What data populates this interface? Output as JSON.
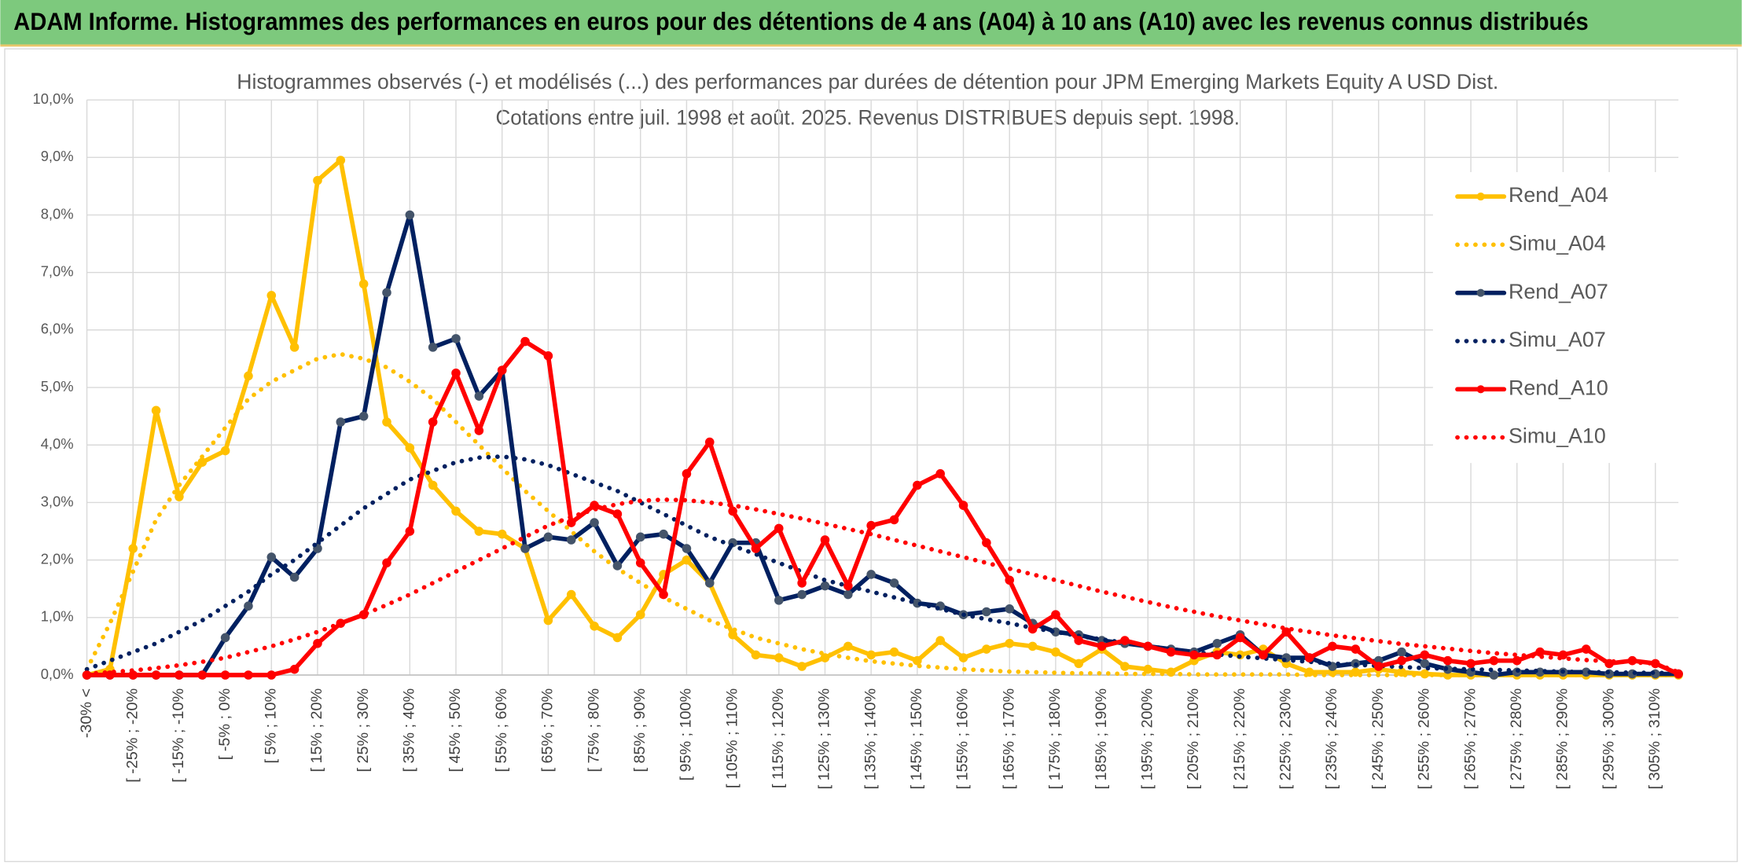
{
  "header": {
    "title": "ADAM Informe. Histogrammes des performances en euros pour des détentions de 4 ans (A04) à 10 ans (A10) avec les revenus connus distribués"
  },
  "chart_data": {
    "type": "line",
    "title": "Histogrammes observés (-) et modélisés (...) des performances par durées de détention pour JPM Emerging Markets Equity A USD Dist.",
    "subtitle": "Cotations entre juil. 1998 et août. 2025. Revenus DISTRIBUES depuis sept. 1998.",
    "categories": [
      "-30% <",
      null,
      "[ -25% ; -20%",
      null,
      "[ -15% ; -10%",
      null,
      "[ -5% ; 0%",
      null,
      "[ 5% ; 10%",
      null,
      "[ 15% ; 20%",
      null,
      "[ 25% ; 30%",
      null,
      "[ 35% ; 40%",
      null,
      "[ 45% ; 50%",
      null,
      "[ 55% ; 60%",
      null,
      "[ 65% ; 70%",
      null,
      "[ 75% ; 80%",
      null,
      "[ 85% ; 90%",
      null,
      "[ 95% ; 100%",
      null,
      "[ 105% ; 110%",
      null,
      "[ 115% ; 120%",
      null,
      "[ 125% ; 130%",
      null,
      "[ 135% ; 140%",
      null,
      "[ 145% ; 150%",
      null,
      "[ 155% ; 160%",
      null,
      "[ 165% ; 170%",
      null,
      "[ 175% ; 180%",
      null,
      "[ 185% ; 190%",
      null,
      "[ 195% ; 200%",
      null,
      "[ 205% ; 210%",
      null,
      "[ 215% ; 220%",
      null,
      "[ 225% ; 230%",
      null,
      "[ 235% ; 240%",
      null,
      "[ 245% ; 250%",
      null,
      "[ 255% ; 260%",
      null,
      "[ 265% ; 270%",
      null,
      "[ 275% ; 280%",
      null,
      "[ 285% ; 290%",
      null,
      "[ 295% ; 300%",
      null,
      "[ 305% ; 310%",
      null
    ],
    "series": [
      {
        "name": "Rend_A04",
        "color": "#FFC000",
        "style": "solid",
        "markers": true,
        "values": [
          0,
          0.1,
          2.2,
          4.6,
          3.1,
          3.7,
          3.9,
          5.2,
          6.6,
          5.7,
          8.6,
          8.95,
          6.8,
          4.4,
          3.95,
          3.3,
          2.85,
          2.5,
          2.45,
          2.2,
          0.95,
          1.4,
          0.85,
          0.65,
          1.05,
          1.75,
          2.0,
          1.6,
          0.7,
          0.35,
          0.3,
          0.15,
          0.3,
          0.5,
          0.35,
          0.4,
          0.25,
          0.6,
          0.3,
          0.45,
          0.55,
          0.5,
          0.4,
          0.2,
          0.45,
          0.15,
          0.1,
          0.05,
          0.25,
          0.4,
          0.35,
          0.45,
          0.2,
          0.05,
          0.05,
          0.05,
          0.1,
          0.05,
          0.02,
          0,
          0,
          0,
          0,
          0,
          0,
          0,
          0,
          0,
          0,
          0
        ]
      },
      {
        "name": "Simu_A04",
        "color": "#FFC000",
        "style": "dotted",
        "markers": false,
        "values": [
          0.1,
          0.9,
          1.8,
          2.7,
          3.3,
          3.8,
          4.3,
          4.8,
          5.1,
          5.3,
          5.5,
          5.58,
          5.5,
          5.35,
          5.1,
          4.8,
          4.4,
          4.0,
          3.6,
          3.2,
          2.85,
          2.5,
          2.15,
          1.85,
          1.6,
          1.35,
          1.15,
          0.95,
          0.8,
          0.65,
          0.55,
          0.45,
          0.37,
          0.3,
          0.24,
          0.2,
          0.16,
          0.13,
          0.1,
          0.08,
          0.06,
          0.05,
          0.04,
          0.03,
          0.03,
          0.02,
          0.02,
          0.02,
          0.01,
          0.01,
          0.01,
          0.01,
          0.01,
          0,
          0,
          0,
          0,
          0,
          0,
          0,
          0,
          0,
          0,
          0,
          0,
          0,
          0,
          0,
          0,
          0
        ]
      },
      {
        "name": "Rend_A07",
        "color": "#002060",
        "marker_color": "#44546A",
        "style": "solid",
        "markers": true,
        "values": [
          0,
          0,
          0,
          0,
          0,
          0,
          0.65,
          1.2,
          2.05,
          1.7,
          2.2,
          4.4,
          4.5,
          6.65,
          8.0,
          5.7,
          5.85,
          4.85,
          5.3,
          2.2,
          2.4,
          2.35,
          2.65,
          1.9,
          2.4,
          2.45,
          2.2,
          1.6,
          2.3,
          2.3,
          1.3,
          1.4,
          1.55,
          1.4,
          1.75,
          1.6,
          1.25,
          1.2,
          1.05,
          1.1,
          1.15,
          0.9,
          0.75,
          0.7,
          0.6,
          0.55,
          0.5,
          0.45,
          0.4,
          0.55,
          0.7,
          0.35,
          0.3,
          0.3,
          0.15,
          0.2,
          0.25,
          0.4,
          0.2,
          0.1,
          0.05,
          0,
          0.05,
          0.05,
          0.05,
          0.05,
          0.02,
          0.02,
          0.02,
          0.02
        ]
      },
      {
        "name": "Simu_A07",
        "color": "#002060",
        "style": "dotted",
        "markers": false,
        "values": [
          0.1,
          0.25,
          0.4,
          0.55,
          0.75,
          0.95,
          1.2,
          1.45,
          1.75,
          2.0,
          2.3,
          2.6,
          2.9,
          3.15,
          3.4,
          3.55,
          3.7,
          3.78,
          3.8,
          3.75,
          3.65,
          3.5,
          3.35,
          3.2,
          3.0,
          2.8,
          2.6,
          2.4,
          2.25,
          2.1,
          1.95,
          1.8,
          1.65,
          1.55,
          1.45,
          1.35,
          1.25,
          1.15,
          1.05,
          0.97,
          0.9,
          0.82,
          0.75,
          0.68,
          0.62,
          0.56,
          0.5,
          0.45,
          0.4,
          0.36,
          0.32,
          0.29,
          0.26,
          0.23,
          0.2,
          0.18,
          0.16,
          0.14,
          0.12,
          0.11,
          0.1,
          0.09,
          0.08,
          0.07,
          0.06,
          0.05,
          0.05,
          0.04,
          0.04,
          0.03
        ]
      },
      {
        "name": "Rend_A10",
        "color": "#FF0000",
        "style": "solid",
        "markers": true,
        "values": [
          0,
          0,
          0,
          0,
          0,
          0,
          0,
          0,
          0,
          0.1,
          0.55,
          0.9,
          1.05,
          1.95,
          2.5,
          4.4,
          5.25,
          4.25,
          5.3,
          5.8,
          5.55,
          2.65,
          2.95,
          2.8,
          1.95,
          1.4,
          3.5,
          4.05,
          2.85,
          2.2,
          2.55,
          1.6,
          2.35,
          1.55,
          2.6,
          2.7,
          3.3,
          3.5,
          2.95,
          2.3,
          1.65,
          0.8,
          1.05,
          0.6,
          0.5,
          0.6,
          0.5,
          0.4,
          0.35,
          0.35,
          0.65,
          0.35,
          0.75,
          0.3,
          0.5,
          0.45,
          0.15,
          0.25,
          0.35,
          0.25,
          0.2,
          0.25,
          0.25,
          0.4,
          0.35,
          0.45,
          0.2,
          0.25,
          0.2,
          0.02
        ]
      },
      {
        "name": "Simu_A10",
        "color": "#FF0000",
        "style": "dotted",
        "markers": false,
        "values": [
          0.02,
          0.05,
          0.08,
          0.12,
          0.17,
          0.23,
          0.3,
          0.4,
          0.5,
          0.62,
          0.75,
          0.9,
          1.05,
          1.22,
          1.4,
          1.6,
          1.8,
          2.0,
          2.2,
          2.4,
          2.6,
          2.75,
          2.88,
          2.97,
          3.03,
          3.05,
          3.04,
          3.0,
          2.95,
          2.88,
          2.8,
          2.72,
          2.63,
          2.54,
          2.45,
          2.35,
          2.25,
          2.15,
          2.05,
          1.95,
          1.85,
          1.75,
          1.65,
          1.55,
          1.45,
          1.36,
          1.27,
          1.18,
          1.1,
          1.02,
          0.95,
          0.88,
          0.81,
          0.75,
          0.69,
          0.64,
          0.59,
          0.54,
          0.5,
          0.46,
          0.42,
          0.38,
          0.35,
          0.32,
          0.29,
          0.26,
          0.24,
          0.22,
          0.2,
          0.05
        ]
      }
    ],
    "ylim": [
      0,
      10
    ],
    "yticks": [
      {
        "value": 0,
        "label": "0,0%"
      },
      {
        "value": 1,
        "label": "1,0%"
      },
      {
        "value": 2,
        "label": "2,0%"
      },
      {
        "value": 3,
        "label": "3,0%"
      },
      {
        "value": 4,
        "label": "4,0%"
      },
      {
        "value": 5,
        "label": "5,0%"
      },
      {
        "value": 6,
        "label": "6,0%"
      },
      {
        "value": 7,
        "label": "7,0%"
      },
      {
        "value": 8,
        "label": "8,0%"
      },
      {
        "value": 9,
        "label": "9,0%"
      },
      {
        "value": 10,
        "label": "10,0%"
      }
    ],
    "grid": true,
    "legend": "right"
  }
}
